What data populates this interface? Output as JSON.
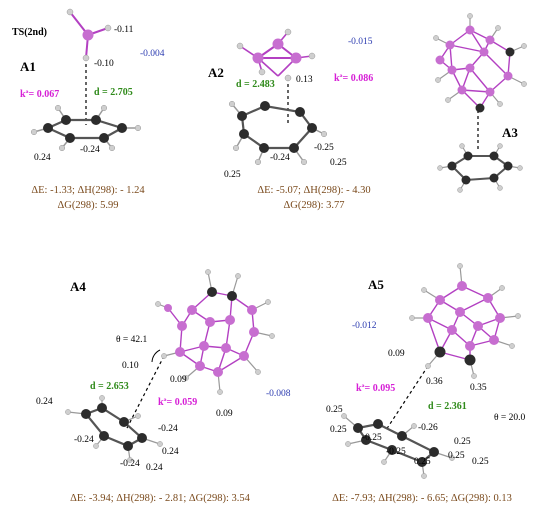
{
  "transition_state_label": "TS(2nd)",
  "colors": {
    "carbon": "#2c2c2c",
    "hydrogen": "#cfcfcf",
    "boron": "#c76ed0",
    "boron_bond": "#b340c2",
    "distance_text": "#2f8a1a",
    "rate_text": "#d61fd6",
    "blue_charge": "#2b3bb0",
    "energy_text": "#7a4a1c"
  },
  "panels": {
    "A1": {
      "label": "A1",
      "charges": [
        "-0.11",
        "-0.004",
        "-0.10",
        "-0.24",
        "0.24"
      ],
      "distance": "d = 2.705",
      "rate": "kª= 0.067",
      "energy_line1": "ΔE: -1.33;  ΔH(298): - 1.24",
      "energy_line2": "ΔG(298): 5.99"
    },
    "A2": {
      "label": "A2",
      "charges": [
        "-0.015",
        "0.13",
        "-0.25",
        "-0.24",
        "0.25",
        "0.25"
      ],
      "distance": "d = 2.483",
      "rate": "kª= 0.086",
      "energy_line1": "ΔE: -5.07;  ΔH(298): - 4.30",
      "energy_line2": "ΔG(298): 3.77"
    },
    "A3": {
      "label": "A3"
    },
    "A4": {
      "label": "A4",
      "theta": "θ = 42.1",
      "charges": [
        "0.10",
        "0.09",
        "0.09",
        "-0.008",
        "0.24",
        "-0.24",
        "-0.24",
        "-0.24",
        "0.24",
        "0.24"
      ],
      "distance": "d = 2.653",
      "rate": "kª= 0.059",
      "energy_line": "ΔE: -3.94;   ΔH(298): - 2.81;   ΔG(298): 3.54"
    },
    "A5": {
      "label": "A5",
      "theta": "θ = 20.0",
      "charges": [
        "-0.012",
        "0.09",
        "0.36",
        "0.35",
        "0.25",
        "0.25",
        "-0.25",
        "-0.25",
        "-0.26",
        "0.25",
        "0.25",
        "0.25",
        "0.25"
      ],
      "distance": "d = 2.361",
      "rate": "kª= 0.095",
      "energy_line": "ΔE: -7.93;   ΔH(298): - 6.65;   ΔG(298): 0.13"
    }
  }
}
